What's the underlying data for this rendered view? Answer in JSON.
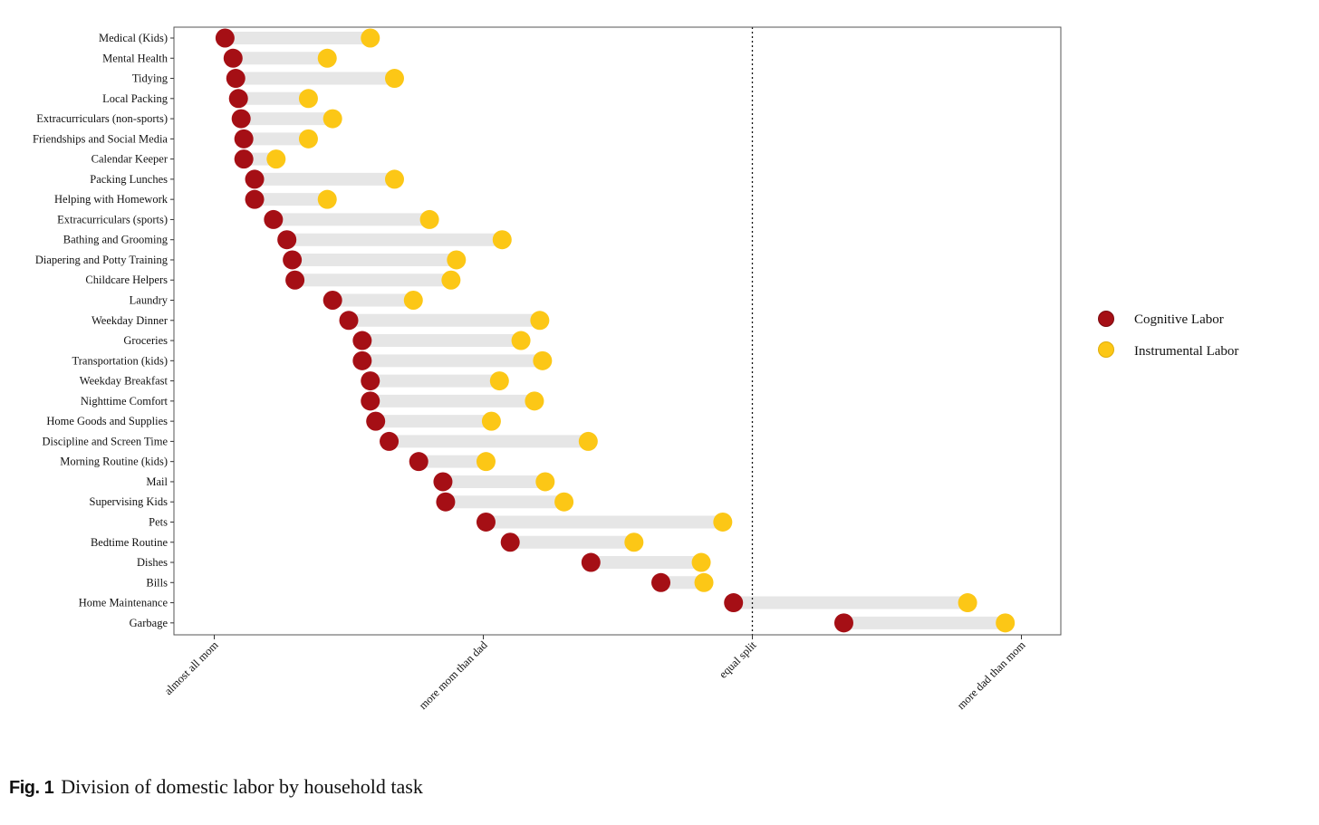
{
  "chart_data": {
    "type": "dumbbell",
    "title": "",
    "xlabel": "",
    "ylabel": "",
    "xlim": [
      -0.15,
      3.15
    ],
    "x_ticks": [
      {
        "value": 0,
        "label": "almost all mom"
      },
      {
        "value": 1,
        "label": "more mom than dad"
      },
      {
        "value": 2,
        "label": "equal split"
      },
      {
        "value": 3,
        "label": "more dad than mom"
      }
    ],
    "reference_line": {
      "value": 2,
      "style": "dotted"
    },
    "series": [
      {
        "name": "Cognitive Labor",
        "color": "#a50f15"
      },
      {
        "name": "Instrumental Labor",
        "color": "#fcc716"
      }
    ],
    "categories": [
      "Medical (Kids)",
      "Mental Health",
      "Tidying",
      "Local Packing",
      "Extracurriculars (non-sports)",
      "Friendships and Social Media",
      "Calendar Keeper",
      "Packing Lunches",
      "Helping with Homework",
      "Extracurriculars (sports)",
      "Bathing and Grooming",
      "Diapering and Potty Training",
      "Childcare Helpers",
      "Laundry",
      "Weekday Dinner",
      "Groceries",
      "Transportation (kids)",
      "Weekday Breakfast",
      "Nighttime Comfort",
      "Home Goods and Supplies",
      "Discipline and Screen Time",
      "Morning Routine (kids)",
      "Mail",
      "Supervising Kids",
      "Pets",
      "Bedtime Routine",
      "Dishes",
      "Bills",
      "Home Maintenance",
      "Garbage"
    ],
    "cognitive": [
      0.04,
      0.07,
      0.08,
      0.09,
      0.1,
      0.11,
      0.11,
      0.15,
      0.15,
      0.22,
      0.27,
      0.29,
      0.3,
      0.44,
      0.5,
      0.55,
      0.55,
      0.58,
      0.58,
      0.6,
      0.65,
      0.76,
      0.85,
      0.86,
      1.01,
      1.1,
      1.4,
      1.66,
      1.93,
      2.34
    ],
    "instrumental": [
      0.58,
      0.42,
      0.67,
      0.35,
      0.44,
      0.35,
      0.23,
      0.67,
      0.42,
      0.8,
      1.07,
      0.9,
      0.88,
      0.74,
      1.21,
      1.14,
      1.22,
      1.06,
      1.19,
      1.03,
      1.39,
      1.01,
      1.23,
      1.3,
      1.89,
      1.56,
      1.81,
      1.82,
      2.8,
      2.94
    ]
  },
  "caption": {
    "fig_label": "Fig. 1",
    "title": "Division of domestic labor by household task"
  }
}
